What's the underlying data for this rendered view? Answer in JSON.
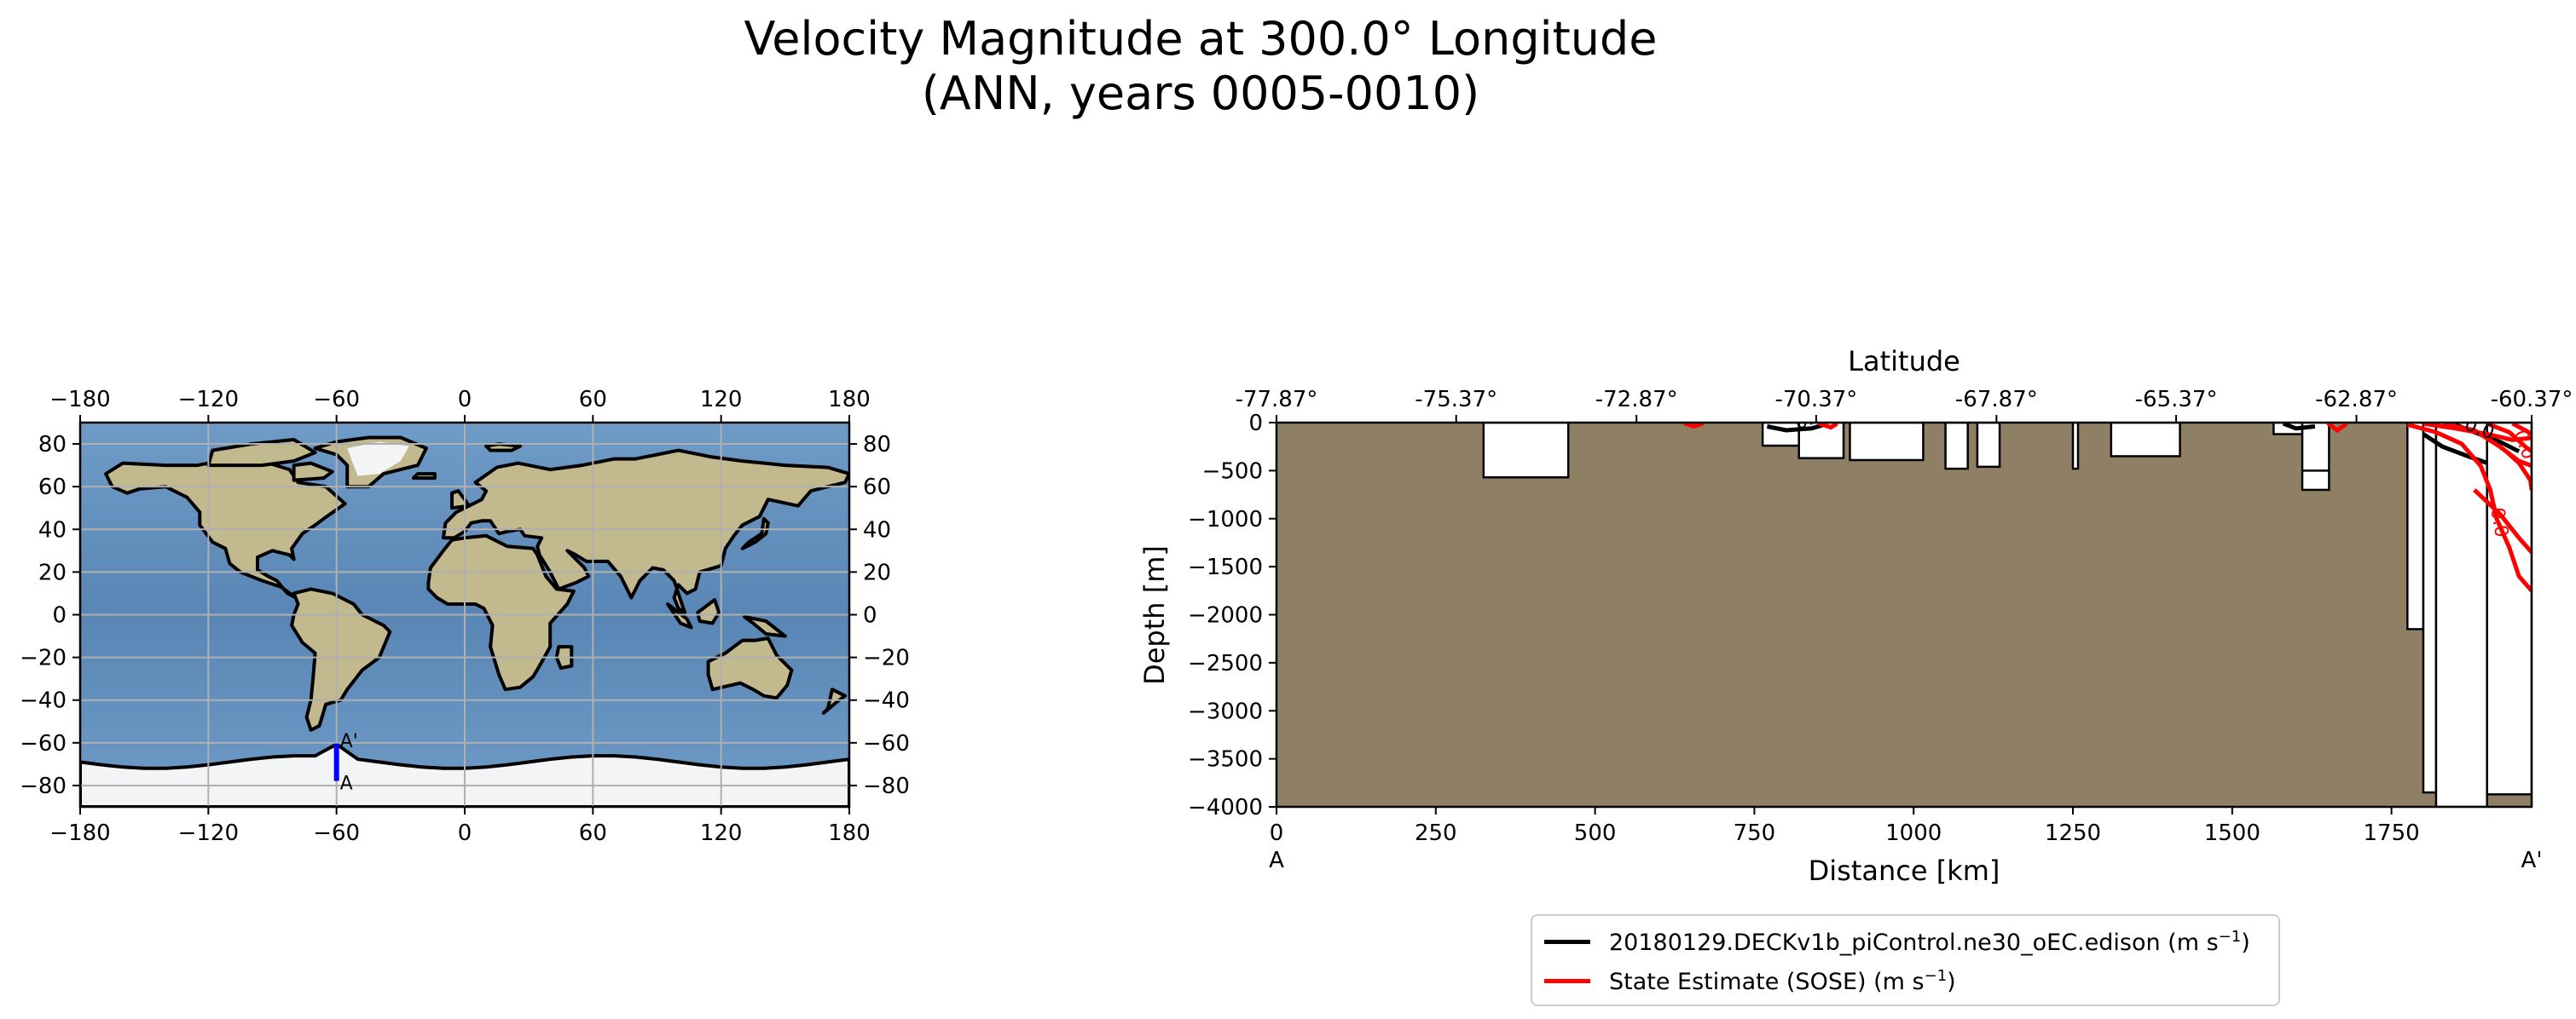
{
  "figure": {
    "title_line1": "Velocity Magnitude at 300.0° Longitude",
    "title_line2": "(ANN, years 0005-0010)"
  },
  "colors": {
    "land": "#8f7f65",
    "ocean": "#5d8cb8",
    "ice": "#f2f4f6",
    "continent": "#c2b98f",
    "model_line": "#000000",
    "obs_line": "#ff0000",
    "transect": "#0000ff"
  },
  "chart_data": [
    {
      "type": "map",
      "name": "transect-location-map",
      "xlim": [
        -180,
        180
      ],
      "ylim": [
        -90,
        90
      ],
      "x_ticks": [
        -180,
        -120,
        -60,
        0,
        60,
        120,
        180
      ],
      "y_ticks": [
        -80,
        -60,
        -40,
        -20,
        0,
        20,
        40,
        60,
        80
      ],
      "x_tick_labels": [
        "−180",
        "−120",
        "−60",
        "0",
        "60",
        "120",
        "180"
      ],
      "y_tick_labels": [
        "−80",
        "−60",
        "−40",
        "−20",
        "0",
        "20",
        "40",
        "60",
        "80"
      ],
      "grid": true,
      "transect": {
        "lon": -60,
        "lat_start": -60.37,
        "lat_end": -77.87,
        "start_label": "A",
        "end_label": "A'"
      }
    },
    {
      "type": "contour",
      "name": "velocity-transect",
      "xlabel": "Distance [km]",
      "ylabel": "Depth [m]",
      "top_xlabel": "Latitude",
      "xlim": [
        0,
        1970
      ],
      "ylim": [
        -4000,
        0
      ],
      "x_ticks": [
        0,
        250,
        500,
        750,
        1000,
        1250,
        1500,
        1750
      ],
      "y_ticks": [
        0,
        -500,
        -1000,
        -1500,
        -2000,
        -2500,
        -3000,
        -3500,
        -4000
      ],
      "y_tick_labels": [
        "0",
        "−500",
        "−1000",
        "−1500",
        "−2000",
        "−2500",
        "−3000",
        "−3500",
        "−4000"
      ],
      "top_ticks_km": [
        0,
        282,
        565,
        847,
        1130,
        1412,
        1695,
        1970
      ],
      "top_tick_labels": [
        "-77.87°",
        "-75.37°",
        "-72.87°",
        "-70.37°",
        "-67.87°",
        "-65.37°",
        "-62.87°",
        "-60.37°"
      ],
      "start_label": "A",
      "end_label": "A'",
      "contour_labels": [
        "0.0",
        "0.0",
        "0.0",
        "0.0"
      ],
      "water_regions": [
        {
          "x": [
            325,
            458
          ],
          "depth_top": 0,
          "depth_bottom": 570
        },
        {
          "x": [
            763,
            820
          ],
          "depth_top": 0,
          "depth_bottom": 240
        },
        {
          "x": [
            820,
            890
          ],
          "depth_top": 0,
          "depth_bottom": 370
        },
        {
          "x": [
            900,
            1015
          ],
          "depth_top": 0,
          "depth_bottom": 390
        },
        {
          "x": [
            1050,
            1085
          ],
          "depth_top": 0,
          "depth_bottom": 480
        },
        {
          "x": [
            1100,
            1135
          ],
          "depth_top": 0,
          "depth_bottom": 460
        },
        {
          "x": [
            1250,
            1258
          ],
          "depth_top": 0,
          "depth_bottom": 480
        },
        {
          "x": [
            1310,
            1418
          ],
          "depth_top": 0,
          "depth_bottom": 350
        },
        {
          "x": [
            1565,
            1610
          ],
          "depth_top": 0,
          "depth_bottom": 120
        },
        {
          "x": [
            1610,
            1652
          ],
          "depth_top": 0,
          "depth_bottom": 700
        },
        {
          "x": [
            1775,
            1800
          ],
          "depth_top": 0,
          "depth_bottom": 2150
        },
        {
          "x": [
            1800,
            1820
          ],
          "depth_top": 0,
          "depth_bottom": 3850
        },
        {
          "x": [
            1820,
            1900
          ],
          "depth_top": 0,
          "depth_bottom": 4000
        },
        {
          "x": [
            1900,
            1970
          ],
          "depth_top": 0,
          "depth_bottom": 3870
        }
      ],
      "series": [
        {
          "name": "20180129.DECKv1b_piControl.ne30_oEC.edison (m s⁻¹)",
          "color": "#000000"
        },
        {
          "name": "State Estimate (SOSE) (m s⁻¹)",
          "color": "#ff0000"
        }
      ]
    }
  ],
  "legend": {
    "model_prefix": "20180129.DECKv1b_piControl.ne30_oEC.edison (m s",
    "obs_prefix": "State Estimate (SOSE) (m s",
    "unit_sup": "−1",
    "unit_close": ")"
  }
}
